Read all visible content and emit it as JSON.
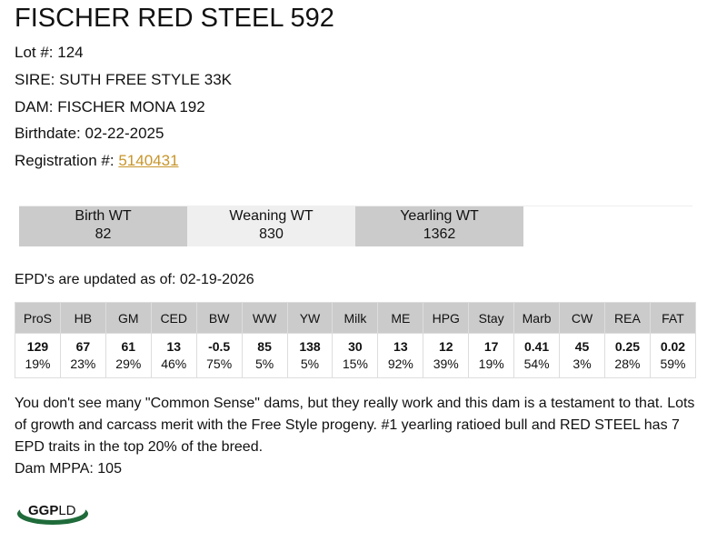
{
  "title": "FISCHER RED STEEL 592",
  "lot": "Lot #: 124",
  "sire": "SIRE: SUTH FREE STYLE 33K",
  "dam": "DAM: FISCHER MONA 192",
  "birthdate": "Birthdate: 02-22-2025",
  "registration_label": "Registration #: ",
  "registration_number": "5140431",
  "weights": [
    {
      "label": "Birth WT",
      "value": "82"
    },
    {
      "label": "Weaning WT",
      "value": "830"
    },
    {
      "label": "Yearling WT",
      "value": "1362"
    }
  ],
  "epd_updated": "EPD's are updated as of: 02-19-2026",
  "epd_table": {
    "headers": [
      "ProS",
      "HB",
      "GM",
      "CED",
      "BW",
      "WW",
      "YW",
      "Milk",
      "ME",
      "HPG",
      "Stay",
      "Marb",
      "CW",
      "REA",
      "FAT"
    ],
    "values": [
      "129",
      "67",
      "61",
      "13",
      "-0.5",
      "85",
      "138",
      "30",
      "13",
      "12",
      "17",
      "0.41",
      "45",
      "0.25",
      "0.02"
    ],
    "percentiles": [
      "19%",
      "23%",
      "29%",
      "46%",
      "75%",
      "5%",
      "5%",
      "15%",
      "92%",
      "39%",
      "19%",
      "54%",
      "3%",
      "28%",
      "59%"
    ]
  },
  "notes": "You don't see many \"Common Sense\" dams, but they really work and this dam is a testament to that. Lots of growth and carcass merit with the Free Style progeny. #1 yearling ratioed bull and RED STEEL has 7 EPD traits in the top 20% of the breed.",
  "dam_mppa": "Dam MPPA: 105",
  "logo_text": "GGPLD",
  "colors": {
    "link": "#c8952a",
    "logo_green": "#1f6b3a"
  }
}
